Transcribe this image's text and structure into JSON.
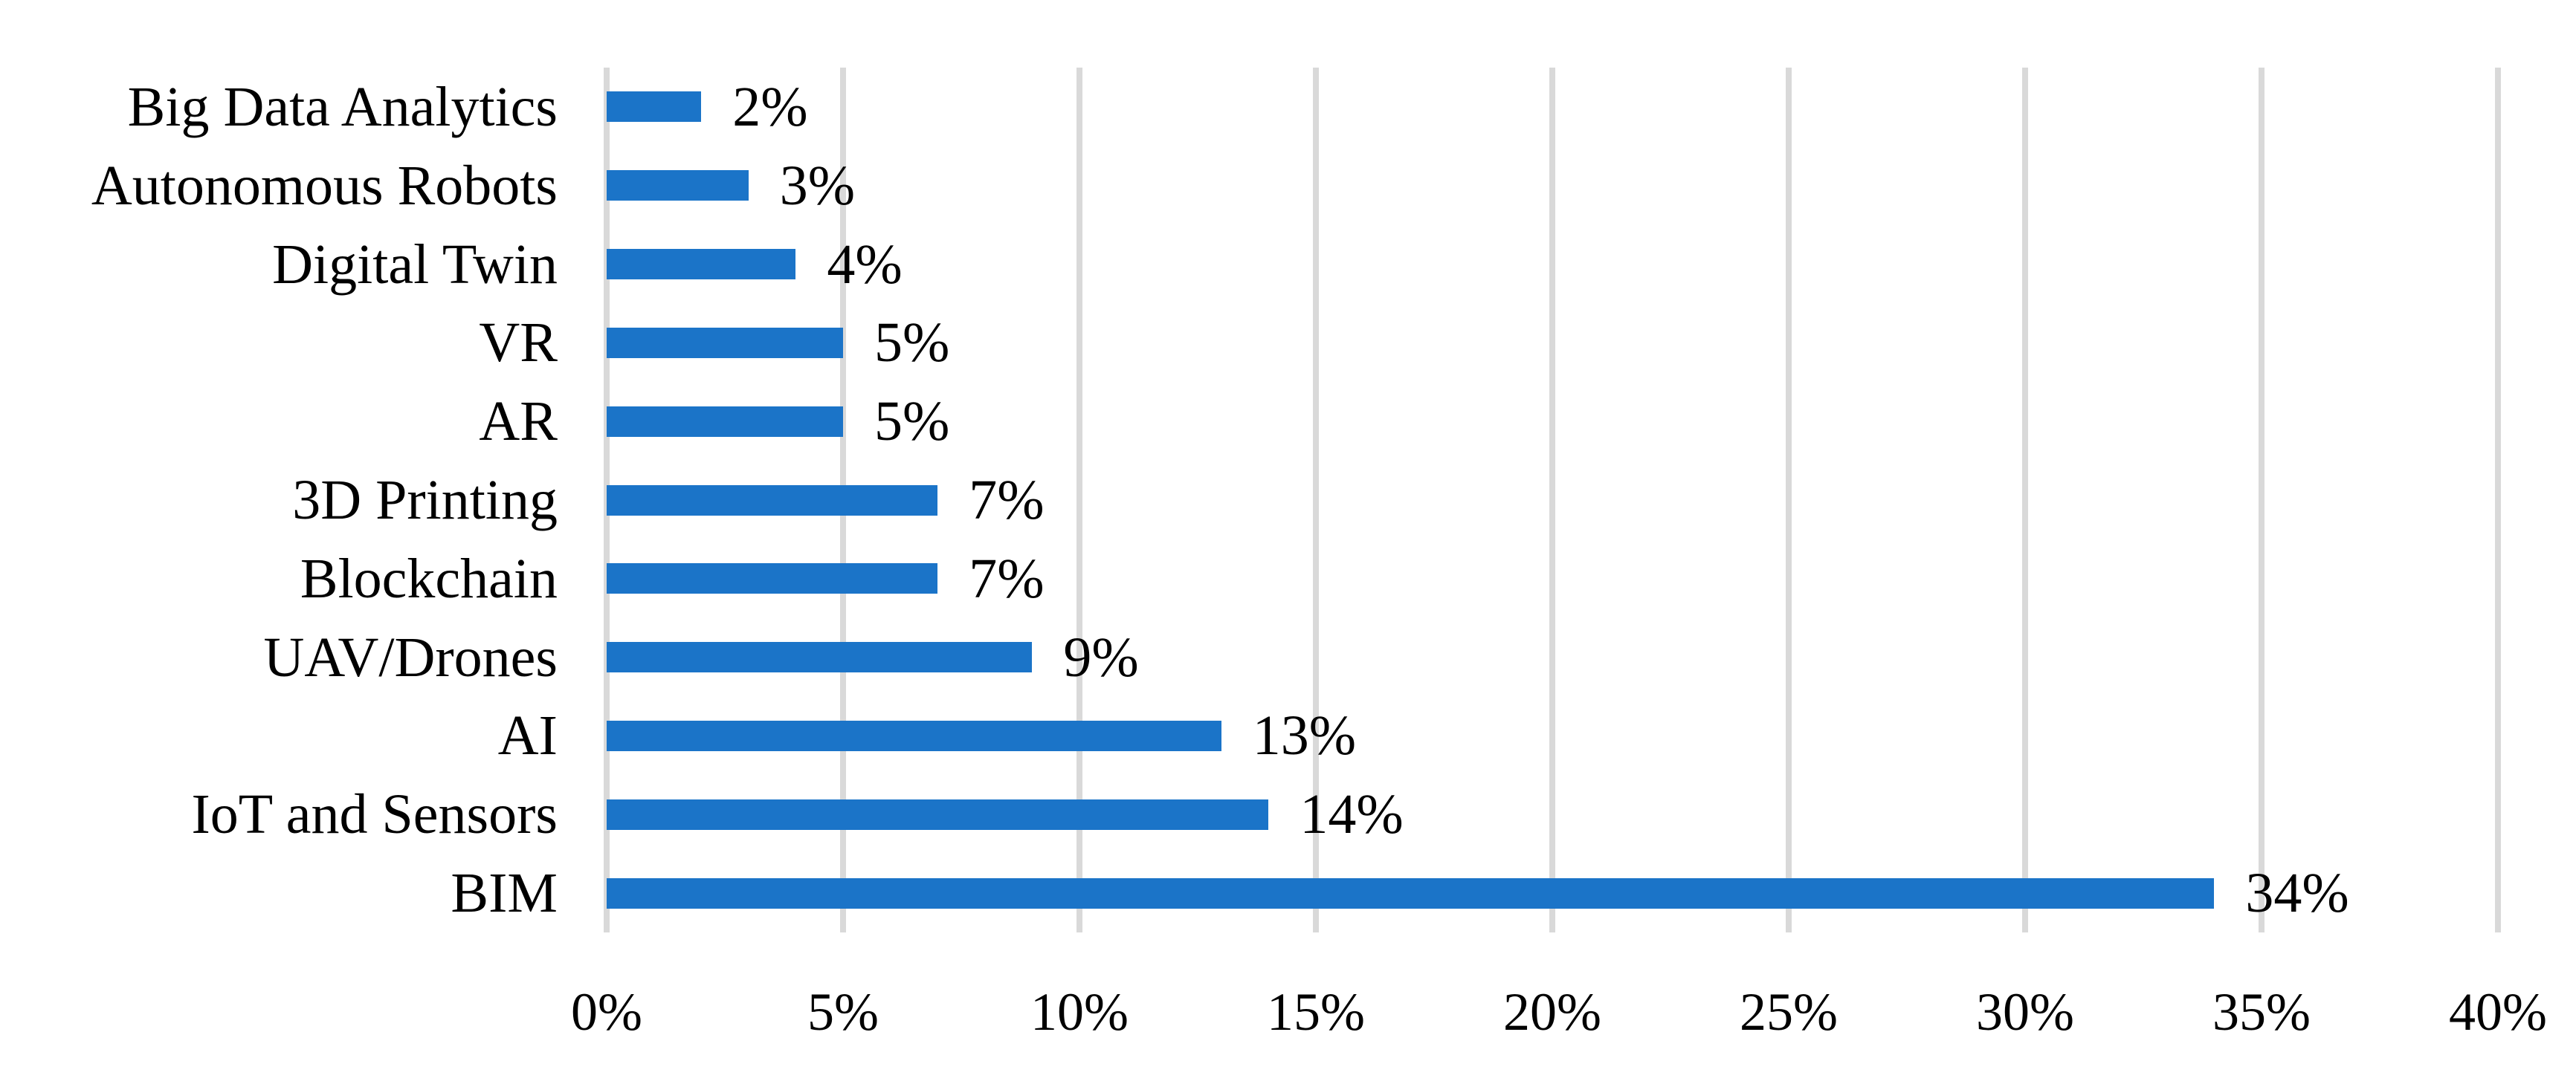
{
  "figure": {
    "background_color": "#FFFFFF",
    "title": "",
    "legend": "none"
  },
  "chart_data": {
    "type": "bar",
    "orientation": "horizontal",
    "category_order": "top-to-bottom",
    "categories": [
      "Big Data Analytics",
      "Autonomous Robots",
      "Digital Twin",
      "VR",
      "AR",
      "3D Printing",
      "Blockchain",
      "UAV/Drones",
      "AI",
      "IoT and Sensors",
      "BIM"
    ],
    "values": [
      2,
      3,
      4,
      5,
      5,
      7,
      7,
      9,
      13,
      14,
      34
    ],
    "data_labels": [
      "2%",
      "3%",
      "4%",
      "5%",
      "5%",
      "7%",
      "7%",
      "9%",
      "13%",
      "14%",
      "34%"
    ],
    "title": "",
    "xlabel": "",
    "ylabel": "",
    "xlim": [
      0,
      40
    ],
    "x_ticks": [
      0,
      5,
      10,
      15,
      20,
      25,
      30,
      35,
      40
    ],
    "x_tick_labels": [
      "0%",
      "5%",
      "10%",
      "15%",
      "20%",
      "25%",
      "30%",
      "35%",
      "40%"
    ],
    "grid": "vertical gridlines on",
    "legend_position": "none",
    "bar_color": "#1B74C8",
    "gridline_color": "#D9D9D9",
    "text_color": "#000000"
  }
}
